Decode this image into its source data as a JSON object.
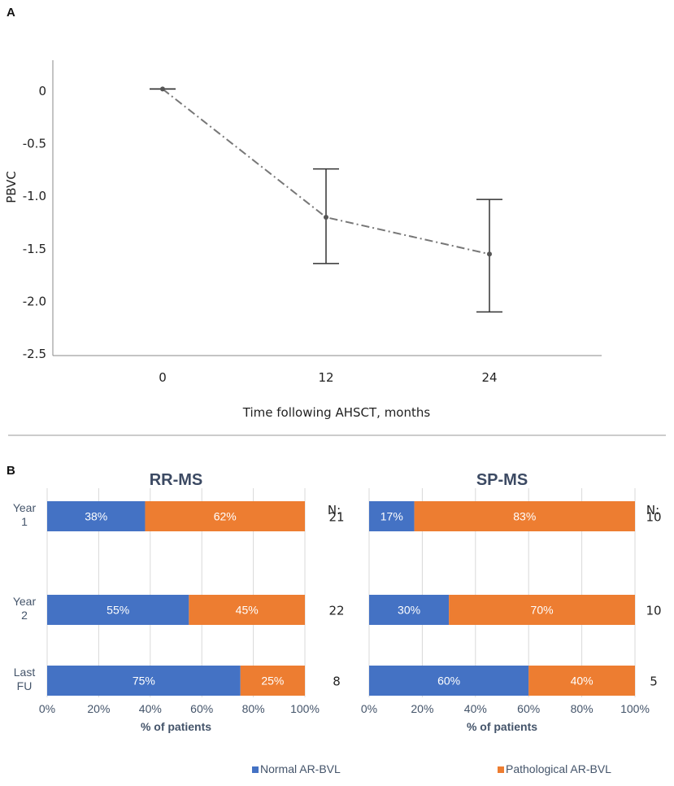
{
  "chart_data": [
    {
      "panel": "A",
      "type": "line",
      "x": [
        0,
        12,
        24
      ],
      "xtick_labels": [
        "0",
        "12",
        "24"
      ],
      "y": [
        0.02,
        -1.2,
        -1.55
      ],
      "error_high": [
        0.02,
        -0.74,
        -1.03
      ],
      "error_low": [
        0.02,
        -1.64,
        -2.1
      ],
      "ylim": [
        -2.5,
        0.3
      ],
      "yticks": [
        0,
        -0.5,
        -1.0,
        -1.5,
        -2.0,
        -2.5
      ],
      "ytick_labels": [
        "0",
        "-0.5",
        "-1.0",
        "-1.5",
        "-2.0",
        "-2.5"
      ],
      "xlabel": "Time following AHSCT, months",
      "ylabel": "PBVC",
      "line_style": "dash-dot",
      "colors": {
        "line": "#777777",
        "marker": "#555555",
        "error": "#333333",
        "axis": "#888888"
      }
    },
    {
      "panel": "B",
      "type": "bar",
      "orientation": "horizontal-stacked-100",
      "title": "RR-MS",
      "categories": [
        "Year 1",
        "Year 2",
        "Last FU"
      ],
      "category_lines": [
        [
          "Year",
          "1"
        ],
        [
          "Year",
          "2"
        ],
        [
          "Last",
          "FU"
        ]
      ],
      "series": [
        {
          "name": "Normal AR-BVL",
          "values": [
            38,
            55,
            75
          ],
          "labels": [
            "38%",
            "55%",
            "75%"
          ]
        },
        {
          "name": "Pathological AR-BVL",
          "values": [
            62,
            45,
            25
          ],
          "labels": [
            "62%",
            "45%",
            "25%"
          ]
        }
      ],
      "n_header": "N:",
      "n_values": [
        "21",
        "22",
        "8"
      ],
      "xlim": [
        0,
        100
      ],
      "xticks": [
        0,
        20,
        40,
        60,
        80,
        100
      ],
      "xtick_labels": [
        "0%",
        "20%",
        "40%",
        "60%",
        "80%",
        "100%"
      ],
      "xlabel": "% of patients"
    },
    {
      "panel": "B",
      "type": "bar",
      "orientation": "horizontal-stacked-100",
      "title": "SP-MS",
      "categories": [
        "Year 1",
        "Year 2",
        "Last FU"
      ],
      "series": [
        {
          "name": "Normal AR-BVL",
          "values": [
            17,
            30,
            60
          ],
          "labels": [
            "17%",
            "30%",
            "60%"
          ]
        },
        {
          "name": "Pathological AR-BVL",
          "values": [
            83,
            70,
            40
          ],
          "labels": [
            "83%",
            "70%",
            "40%"
          ]
        }
      ],
      "n_header": "N:",
      "n_values": [
        "10",
        "10",
        "5"
      ],
      "xlim": [
        0,
        100
      ],
      "xticks": [
        0,
        20,
        40,
        60,
        80,
        100
      ],
      "xtick_labels": [
        "0%",
        "20%",
        "40%",
        "60%",
        "80%",
        "100%"
      ],
      "xlabel": "% of patients"
    }
  ],
  "panel_labels": {
    "a": "A",
    "b": "B"
  },
  "legend": {
    "items": [
      {
        "name": "Normal AR-BVL",
        "color": "#4472c4"
      },
      {
        "name": "Pathological AR-BVL",
        "color": "#ed7d31"
      }
    ]
  },
  "colors": {
    "normal": "#4472c4",
    "pathological": "#ed7d31",
    "grid": "#d9d9d9",
    "separator": "#999999"
  }
}
